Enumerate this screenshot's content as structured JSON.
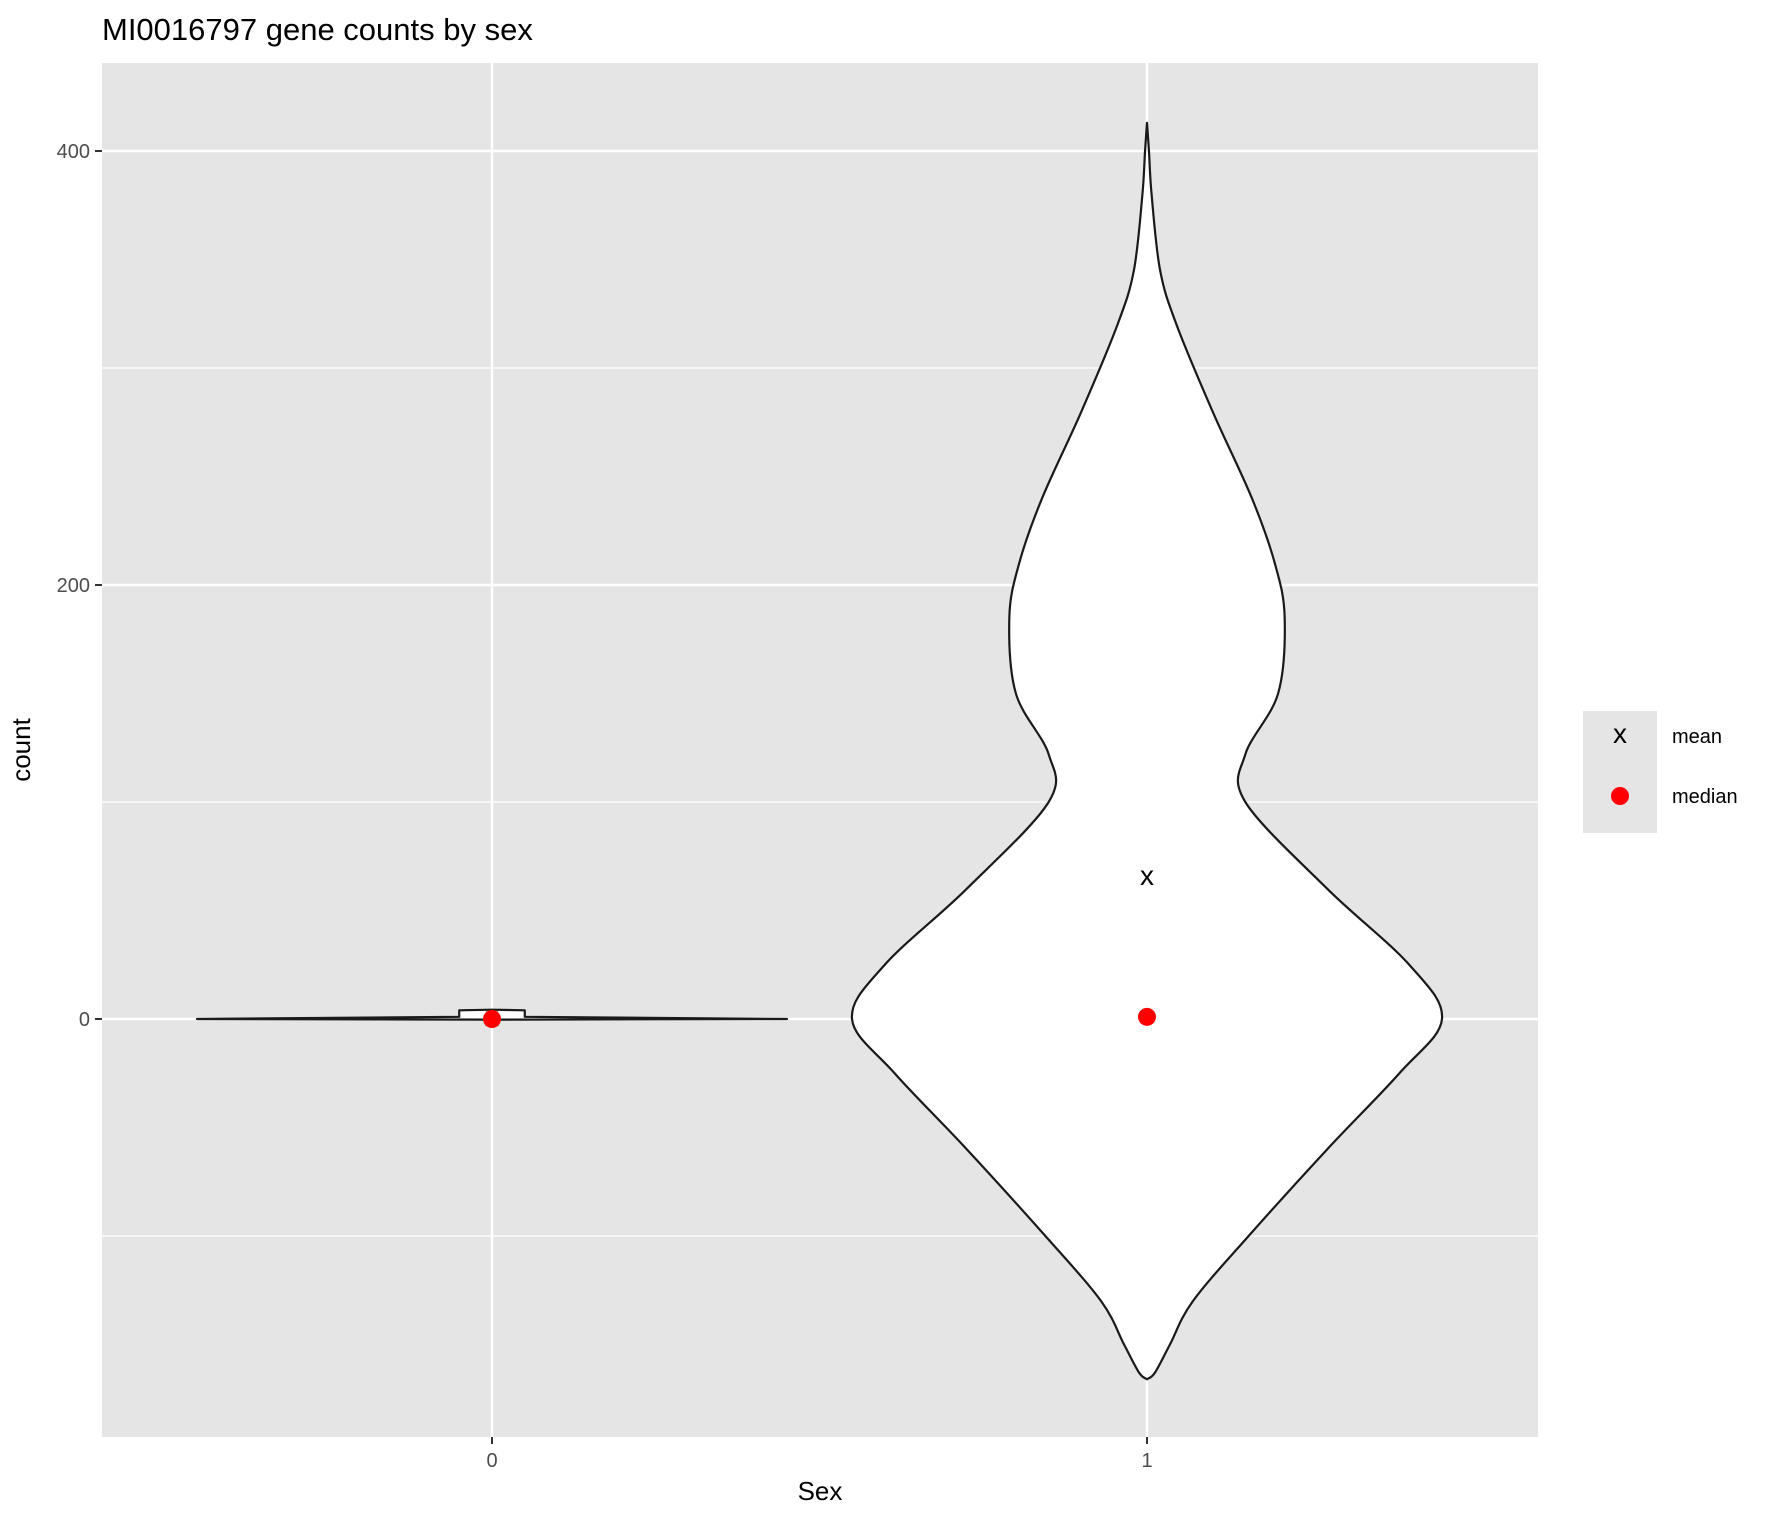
{
  "chart_data": {
    "type": "violin",
    "title": "MI0016797 gene counts by sex",
    "xlabel": "Sex",
    "ylabel": "count",
    "categories": [
      "0",
      "1"
    ],
    "ylim": [
      -195,
      440
    ],
    "y_ticks": [
      0,
      200,
      400
    ],
    "y_tick_labels": [
      "0",
      "200",
      "400"
    ],
    "grid": true,
    "legend_position": "right",
    "legend": [
      {
        "label": "mean",
        "symbol": "x",
        "color": "#000000"
      },
      {
        "label": "median",
        "symbol": "dot",
        "color": "#ff0000"
      }
    ],
    "series": [
      {
        "category": "0",
        "mean": 1,
        "median": 0,
        "density_outline": [
          [
            -0.3,
            0.0
          ],
          [
            0,
            0.45
          ],
          [
            1,
            0.05
          ],
          [
            3,
            0.05
          ],
          [
            4,
            0.05
          ],
          [
            4.3,
            0.0
          ]
        ]
      },
      {
        "category": "1",
        "mean": 66,
        "median": 1,
        "density_outline": [
          [
            -166,
            0.0
          ],
          [
            -163,
            0.012
          ],
          [
            -150,
            0.035
          ],
          [
            -130,
            0.07
          ],
          [
            -100,
            0.155
          ],
          [
            -60,
            0.275
          ],
          [
            -25,
            0.385
          ],
          [
            0,
            0.45
          ],
          [
            25,
            0.4
          ],
          [
            60,
            0.275
          ],
          [
            100,
            0.15
          ],
          [
            122,
            0.15
          ],
          [
            150,
            0.2
          ],
          [
            185,
            0.21
          ],
          [
            210,
            0.195
          ],
          [
            240,
            0.16
          ],
          [
            280,
            0.1
          ],
          [
            320,
            0.045
          ],
          [
            345,
            0.02
          ],
          [
            380,
            0.007
          ],
          [
            400,
            0.003
          ],
          [
            413,
            0.0
          ]
        ]
      }
    ],
    "colors": {
      "panel_background": "#e5e5e5",
      "grid_line": "#ffffff",
      "violin_fill": "#ffffff",
      "violin_outline": "#1a1a1a",
      "median_point": "#ff0000",
      "mean_marker": "#000000",
      "axis_text": "#4d4d4d",
      "title_text": "#000000"
    }
  }
}
